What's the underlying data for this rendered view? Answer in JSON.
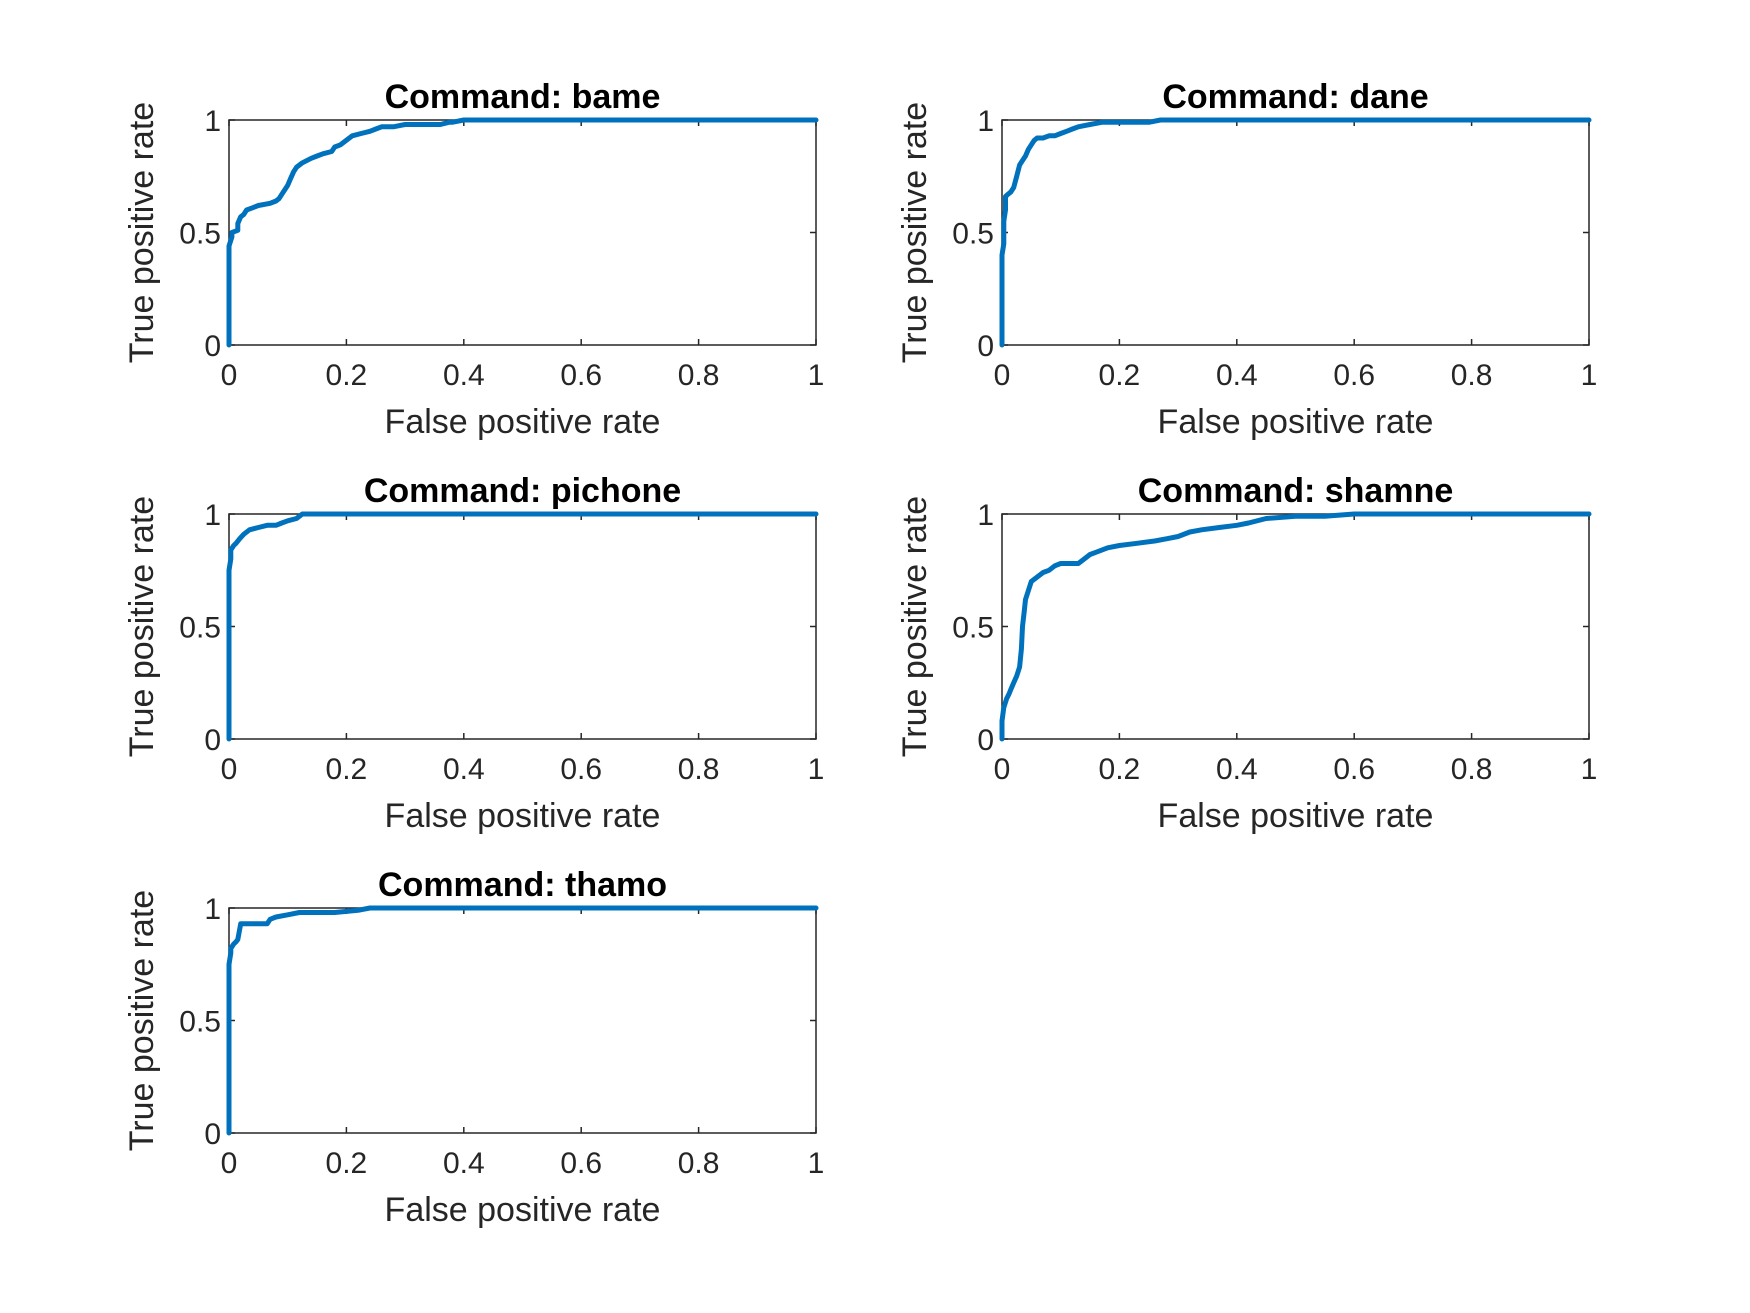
{
  "chart_data": [
    {
      "type": "line",
      "title": "Command: bame",
      "xlabel": "False positive rate",
      "ylabel": "True positive rate",
      "xlim": [
        0,
        1
      ],
      "ylim": [
        0,
        1
      ],
      "xticks": [
        "0",
        "0.2",
        "0.4",
        "0.6",
        "0.8",
        "1"
      ],
      "yticks": [
        "0",
        "0.5",
        "1"
      ],
      "grid": false,
      "color": "#0072BD",
      "series": [
        {
          "x": [
            0,
            0,
            0.005,
            0.005,
            0.015,
            0.015,
            0.02,
            0.025,
            0.03,
            0.04,
            0.05,
            0.07,
            0.08,
            0.085,
            0.09,
            0.095,
            0.1,
            0.105,
            0.11,
            0.115,
            0.125,
            0.14,
            0.15,
            0.16,
            0.175,
            0.18,
            0.19,
            0.2,
            0.21,
            0.225,
            0.24,
            0.25,
            0.26,
            0.28,
            0.3,
            0.33,
            0.36,
            0.375,
            0.38,
            0.4,
            0.45,
            0.5,
            0.6,
            0.7,
            0.8,
            0.9,
            1
          ],
          "y": [
            0,
            0.44,
            0.48,
            0.5,
            0.51,
            0.54,
            0.57,
            0.58,
            0.6,
            0.61,
            0.62,
            0.63,
            0.64,
            0.65,
            0.67,
            0.69,
            0.71,
            0.74,
            0.77,
            0.79,
            0.81,
            0.83,
            0.84,
            0.85,
            0.86,
            0.88,
            0.89,
            0.91,
            0.93,
            0.94,
            0.95,
            0.96,
            0.97,
            0.97,
            0.98,
            0.98,
            0.98,
            0.99,
            0.99,
            1,
            1,
            1,
            1,
            1,
            1,
            1,
            1
          ]
        }
      ]
    },
    {
      "type": "line",
      "title": "Command: dane",
      "xlabel": "False positive rate",
      "ylabel": "True positive rate",
      "xlim": [
        0,
        1
      ],
      "ylim": [
        0,
        1
      ],
      "xticks": [
        "0",
        "0.2",
        "0.4",
        "0.6",
        "0.8",
        "1"
      ],
      "yticks": [
        "0",
        "0.5",
        "1"
      ],
      "grid": false,
      "color": "#0072BD",
      "series": [
        {
          "x": [
            0,
            0,
            0.003,
            0.003,
            0.006,
            0.006,
            0.01,
            0.015,
            0.02,
            0.025,
            0.03,
            0.035,
            0.04,
            0.045,
            0.05,
            0.055,
            0.06,
            0.07,
            0.08,
            0.09,
            0.1,
            0.11,
            0.12,
            0.13,
            0.15,
            0.17,
            0.2,
            0.25,
            0.27,
            0.3,
            0.4,
            0.5,
            0.6,
            0.7,
            0.8,
            0.9,
            1
          ],
          "y": [
            0,
            0.4,
            0.45,
            0.55,
            0.6,
            0.66,
            0.67,
            0.68,
            0.7,
            0.75,
            0.8,
            0.82,
            0.84,
            0.87,
            0.89,
            0.91,
            0.92,
            0.92,
            0.93,
            0.93,
            0.94,
            0.95,
            0.96,
            0.97,
            0.98,
            0.99,
            0.99,
            0.99,
            1,
            1,
            1,
            1,
            1,
            1,
            1,
            1,
            1
          ]
        }
      ]
    },
    {
      "type": "line",
      "title": "Command: pichone",
      "xlabel": "False positive rate",
      "ylabel": "True positive rate",
      "xlim": [
        0,
        1
      ],
      "ylim": [
        0,
        1
      ],
      "xticks": [
        "0",
        "0.2",
        "0.4",
        "0.6",
        "0.8",
        "1"
      ],
      "yticks": [
        "0",
        "0.5",
        "1"
      ],
      "grid": false,
      "color": "#0072BD",
      "series": [
        {
          "x": [
            0,
            0,
            0.003,
            0.003,
            0.008,
            0.012,
            0.018,
            0.025,
            0.035,
            0.05,
            0.065,
            0.08,
            0.09,
            0.1,
            0.115,
            0.125,
            0.2,
            0.3,
            0.4,
            0.5,
            0.6,
            0.7,
            0.8,
            0.9,
            1
          ],
          "y": [
            0,
            0.75,
            0.8,
            0.84,
            0.86,
            0.87,
            0.89,
            0.91,
            0.93,
            0.94,
            0.95,
            0.95,
            0.96,
            0.97,
            0.98,
            1,
            1,
            1,
            1,
            1,
            1,
            1,
            1,
            1,
            1
          ]
        }
      ]
    },
    {
      "type": "line",
      "title": "Command: shamne",
      "xlabel": "False positive rate",
      "ylabel": "True positive rate",
      "xlim": [
        0,
        1
      ],
      "ylim": [
        0,
        1
      ],
      "xticks": [
        "0",
        "0.2",
        "0.4",
        "0.6",
        "0.8",
        "1"
      ],
      "yticks": [
        "0",
        "0.5",
        "1"
      ],
      "grid": false,
      "color": "#0072BD",
      "series": [
        {
          "x": [
            0,
            0,
            0.003,
            0.008,
            0.012,
            0.015,
            0.02,
            0.025,
            0.03,
            0.033,
            0.035,
            0.038,
            0.04,
            0.045,
            0.05,
            0.06,
            0.07,
            0.08,
            0.09,
            0.1,
            0.11,
            0.13,
            0.14,
            0.15,
            0.16,
            0.18,
            0.2,
            0.23,
            0.26,
            0.28,
            0.3,
            0.32,
            0.34,
            0.37,
            0.4,
            0.42,
            0.45,
            0.5,
            0.55,
            0.6,
            0.7,
            0.8,
            0.9,
            1
          ],
          "y": [
            0,
            0.08,
            0.14,
            0.18,
            0.2,
            0.22,
            0.25,
            0.28,
            0.32,
            0.4,
            0.5,
            0.57,
            0.62,
            0.66,
            0.7,
            0.72,
            0.74,
            0.75,
            0.77,
            0.78,
            0.78,
            0.78,
            0.8,
            0.82,
            0.83,
            0.85,
            0.86,
            0.87,
            0.88,
            0.89,
            0.9,
            0.92,
            0.93,
            0.94,
            0.95,
            0.96,
            0.98,
            0.99,
            0.99,
            1,
            1,
            1,
            1,
            1
          ]
        }
      ]
    },
    {
      "type": "line",
      "title": "Command: thamo",
      "xlabel": "False positive rate",
      "ylabel": "True positive rate",
      "xlim": [
        0,
        1
      ],
      "ylim": [
        0,
        1
      ],
      "xticks": [
        "0",
        "0.2",
        "0.4",
        "0.6",
        "0.8",
        "1"
      ],
      "yticks": [
        "0",
        "0.5",
        "1"
      ],
      "grid": false,
      "color": "#0072BD",
      "series": [
        {
          "x": [
            0,
            0,
            0.003,
            0.003,
            0.008,
            0.012,
            0.015,
            0.02,
            0.03,
            0.05,
            0.065,
            0.07,
            0.08,
            0.1,
            0.12,
            0.15,
            0.18,
            0.22,
            0.24,
            0.3,
            0.4,
            0.5,
            0.6,
            0.7,
            0.8,
            0.9,
            1
          ],
          "y": [
            0,
            0.75,
            0.8,
            0.82,
            0.84,
            0.85,
            0.86,
            0.93,
            0.93,
            0.93,
            0.93,
            0.95,
            0.96,
            0.97,
            0.98,
            0.98,
            0.98,
            0.99,
            1,
            1,
            1,
            1,
            1,
            1,
            1,
            1,
            1
          ]
        }
      ]
    }
  ]
}
